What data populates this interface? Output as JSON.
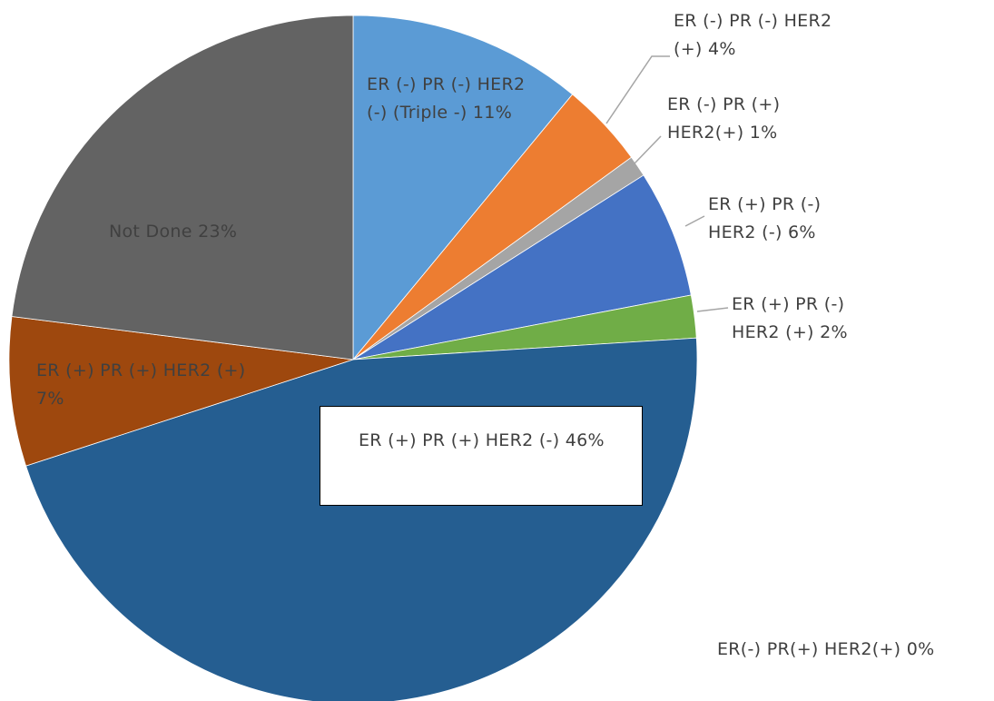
{
  "chart_data": {
    "type": "pie",
    "categories": [
      "ER (-) PR (-) HER2 (-) (Triple -)",
      "ER (-) PR (-) HER2 (+)",
      "ER (-) PR (+) HER2(+)",
      "ER (+) PR (-) HER2 (-)",
      "ER (+) PR (-) HER2 (+)",
      "ER (+) PR (+) HER2 (-)",
      "ER(-) PR(+) HER2(+)",
      "ER (+) PR (+) HER2 (+)",
      "Not Done"
    ],
    "values": [
      11,
      4,
      1,
      6,
      2,
      46,
      0,
      7,
      23
    ],
    "value_labels": [
      "11%",
      "4%",
      "1%",
      "6%",
      "2%",
      "46%",
      "0%",
      "7%",
      "23%"
    ],
    "colors": [
      "#5b9bd5",
      "#ed7d31",
      "#a5a5a5",
      "#4472c4",
      "#70ad47",
      "#255e91",
      "#ffc000",
      "#9e480e",
      "#636363"
    ]
  }
}
